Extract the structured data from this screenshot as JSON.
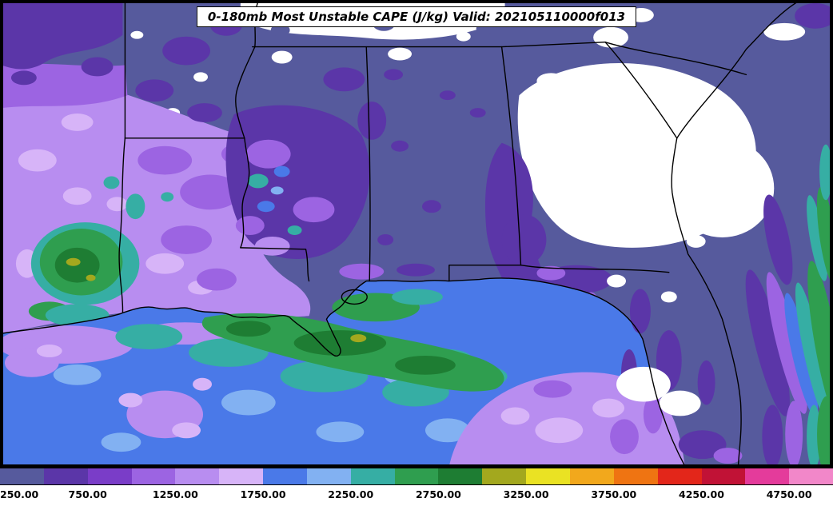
{
  "title": "0-180mb Most Unstable CAPE (J/kg) Valid: 202105110000f013",
  "map": {
    "field": "0-180mb Most Unstable CAPE",
    "units": "J/kg",
    "valid": "202105110000f013",
    "no_data_color": "#FFFFFF"
  },
  "colorbar": {
    "min": 250,
    "max": 5000,
    "interval": 250,
    "tick_labels": [
      "250.00",
      "750.00",
      "1250.00",
      "1750.00",
      "2250.00",
      "2750.00",
      "3250.00",
      "3750.00",
      "4250.00",
      "4750.00"
    ],
    "tick_values": [
      250,
      750,
      1250,
      1750,
      2250,
      2750,
      3250,
      3750,
      4250,
      4750
    ],
    "colors": [
      "#565A9D",
      "#5B36A8",
      "#7A3DC8",
      "#9C64E2",
      "#B88DF0",
      "#D7B4F8",
      "#4A79E8",
      "#82B1F2",
      "#36AEA4",
      "#2F9E4F",
      "#1E7D33",
      "#A3A81E",
      "#EAE223",
      "#F2A81C",
      "#EF7412",
      "#E3261A",
      "#C11236",
      "#E43B9B",
      "#F287C9"
    ]
  }
}
